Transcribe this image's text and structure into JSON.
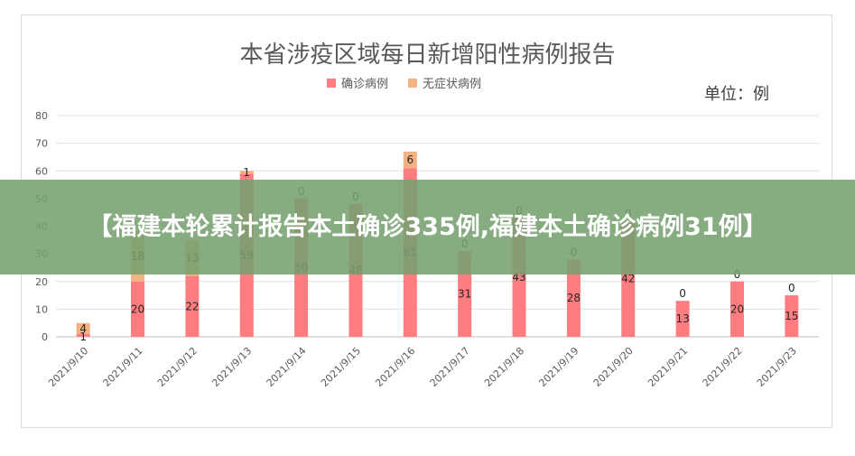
{
  "chart_data": {
    "type": "bar",
    "title": "本省涉疫区域每日新增阳性病例报告",
    "unit": "单位：例",
    "categories": [
      "2021/9/10",
      "2021/9/11",
      "2021/9/12",
      "2021/9/13",
      "2021/9/14",
      "2021/9/15",
      "2021/9/16",
      "2021/9/17",
      "2021/9/18",
      "2021/9/19",
      "2021/9/20",
      "2021/9/21",
      "2021/9/22",
      "2021/9/23"
    ],
    "series": [
      {
        "name": "确诊病例",
        "color": "#ff7c80",
        "values": [
          1,
          20,
          22,
          59,
          50,
          48,
          61,
          31,
          43,
          28,
          42,
          13,
          20,
          15
        ]
      },
      {
        "name": "无症状病例",
        "color": "#f4b183",
        "values": [
          4,
          18,
          13,
          1,
          0,
          0,
          6,
          0,
          0,
          0,
          0,
          0,
          0,
          0
        ]
      }
    ],
    "yticks": [
      0,
      10,
      20,
      30,
      40,
      50,
      60,
      70,
      80
    ],
    "ylim": [
      0,
      80
    ],
    "stacked": true,
    "grid": true,
    "legend_position": "top-center"
  },
  "banner": {
    "text": "【福建本轮累计报告本土确诊335例,福建本土确诊病例31例】",
    "color": "#76a070"
  }
}
